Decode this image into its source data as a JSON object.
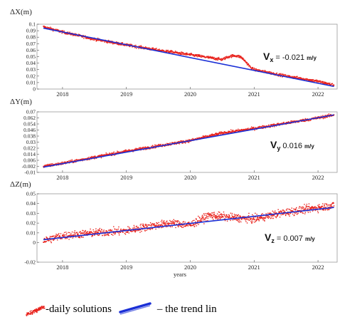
{
  "chart_data": [
    {
      "type": "scatter",
      "ylabel": "ΔX(m)",
      "ylim": [
        0.0,
        0.1
      ],
      "yticks": [
        "0.1",
        "0.09",
        "0.08",
        "0.07",
        "0.06",
        "0.05",
        "0.04",
        "0.03",
        "0.02",
        "0.01",
        "0"
      ],
      "xticks": [
        "2018",
        "2019",
        "2020",
        "2021",
        "2022"
      ],
      "xlim": [
        2017.6,
        2022.3
      ],
      "velocity": {
        "symbol": "V",
        "sub": "x",
        "value": "= -0.021",
        "unit": "m/y"
      },
      "trend": {
        "x": [
          2017.7,
          2022.25
        ],
        "y": [
          0.094,
          0.004
        ]
      },
      "series": [
        {
          "x": [
            2017.7,
            2018.0,
            2018.5,
            2019.0,
            2019.5,
            2020.0,
            2020.2,
            2020.4,
            2020.6,
            2020.8,
            2021.0,
            2021.5,
            2022.0,
            2022.25
          ],
          "y": [
            0.096,
            0.088,
            0.077,
            0.068,
            0.06,
            0.053,
            0.05,
            0.047,
            0.044,
            0.041,
            0.03,
            0.02,
            0.012,
            0.006
          ],
          "bumps": [
            [
              2020.5,
              2020.95,
              0.009
            ]
          ]
        }
      ]
    },
    {
      "type": "scatter",
      "ylabel": "ΔY(m)",
      "ylim": [
        -0.01,
        0.07
      ],
      "yticks": [
        "0.07",
        "0.062",
        "0.054",
        "0.046",
        "0.038",
        "0.03",
        "0.022",
        "0.014",
        "0.006",
        "-0.002",
        "-0.01"
      ],
      "xticks": [
        "2018",
        "2019",
        "2020",
        "2021",
        "2022"
      ],
      "xlim": [
        2017.6,
        2022.3
      ],
      "velocity": {
        "symbol": "V",
        "sub": "y",
        "value": "0.016",
        "unit": "m/y"
      },
      "trend": {
        "x": [
          2017.7,
          2022.25
        ],
        "y": [
          -0.003,
          0.066
        ]
      },
      "series": [
        {
          "x": [
            2017.7,
            2018.0,
            2018.5,
            2019.0,
            2019.5,
            2020.0,
            2020.5,
            2021.0,
            2021.5,
            2022.0,
            2022.25
          ],
          "y": [
            -0.002,
            0.002,
            0.01,
            0.018,
            0.025,
            0.032,
            0.042,
            0.048,
            0.055,
            0.062,
            0.066
          ],
          "bumps": []
        }
      ]
    },
    {
      "type": "scatter",
      "ylabel": "ΔZ(m)",
      "xlabel": "years",
      "ylim": [
        -0.02,
        0.05
      ],
      "yticks": [
        "0.05",
        "0.04",
        "0.03",
        "0.02",
        "0.01",
        "0",
        "-0.02"
      ],
      "ytick_values": [
        0.05,
        0.04,
        0.03,
        0.02,
        0.01,
        0.0,
        -0.02
      ],
      "xticks": [
        "2018",
        "2019",
        "2020",
        "2021",
        "2022"
      ],
      "xlim": [
        2017.6,
        2022.3
      ],
      "velocity": {
        "symbol": "V",
        "sub": "z",
        "value": "= 0.007",
        "unit": "m/y"
      },
      "trend": {
        "x": [
          2017.7,
          2022.25
        ],
        "y": [
          0.003,
          0.036
        ]
      },
      "series": [
        {
          "x": [
            2017.7,
            2018.0,
            2018.5,
            2019.0,
            2019.3,
            2019.7,
            2020.0,
            2020.3,
            2020.6,
            2021.0,
            2021.4,
            2021.8,
            2022.25
          ],
          "y": [
            0.002,
            0.007,
            0.01,
            0.012,
            0.016,
            0.02,
            0.018,
            0.028,
            0.026,
            0.024,
            0.03,
            0.034,
            0.038
          ],
          "bumps": []
        }
      ]
    }
  ],
  "legend": {
    "daily_label": "-daily solutions",
    "trend_label": "– the trend lin",
    "colors": {
      "points": "#e8221c",
      "trend": "#1a2fd6"
    }
  }
}
